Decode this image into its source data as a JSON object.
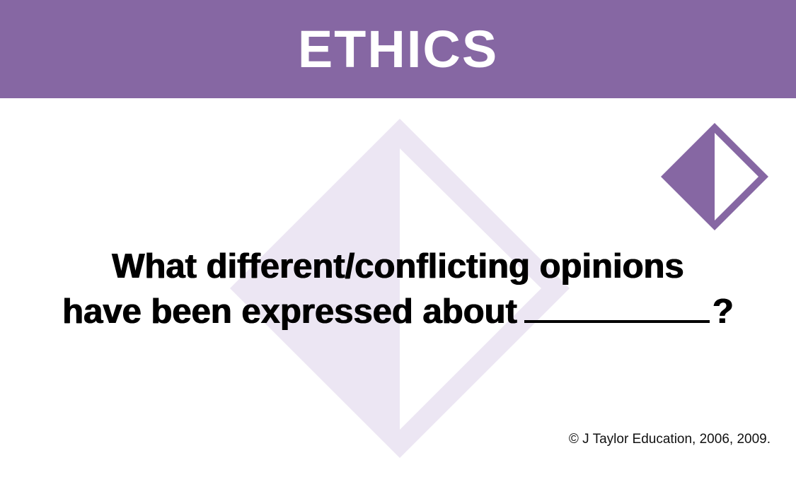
{
  "card": {
    "title": "ETHICS",
    "question": {
      "line1": "What different/conflicting opinions",
      "line2_prefix": "have been expressed about",
      "line2_suffix": "?"
    },
    "copyright": "© J Taylor Education, 2006, 2009."
  },
  "colors": {
    "accent": "#8667a3",
    "watermark": "#ece6f3",
    "background": "#ffffff",
    "text": "#000000"
  },
  "icons": {
    "watermark": "diamond-outline-icon",
    "corner": "half-filled-diamond-icon"
  }
}
